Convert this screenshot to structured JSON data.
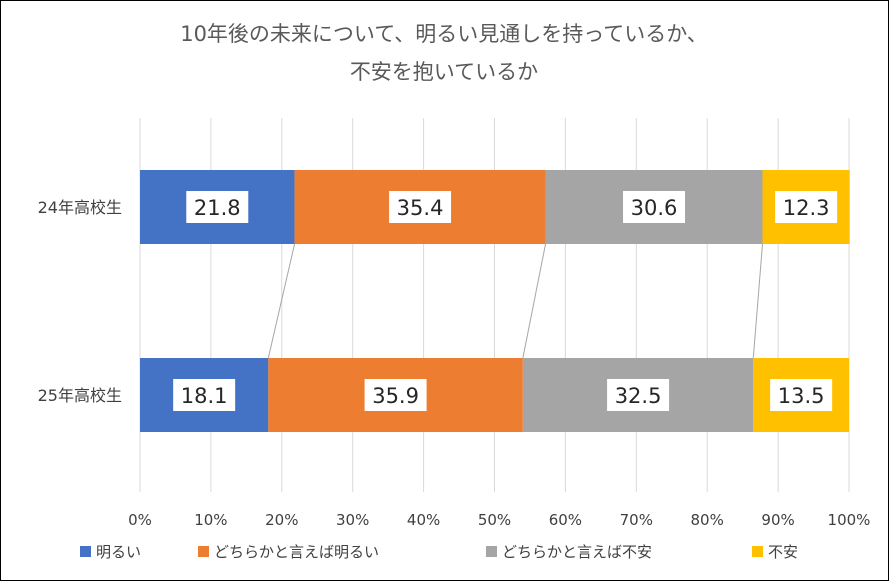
{
  "chart_data": {
    "type": "bar",
    "orientation": "horizontal",
    "stacked": "percent",
    "title_lines": [
      "10年後の未来について、明るい見通しを持っているか、",
      "不安を抱いているか"
    ],
    "categories": [
      "24年高校生",
      "25年高校生"
    ],
    "series": [
      {
        "name": "明るい",
        "color": "#4472C4",
        "values": [
          21.8,
          18.1
        ]
      },
      {
        "name": "どちらかと言えば明るい",
        "color": "#ED7D31",
        "values": [
          35.4,
          35.9
        ]
      },
      {
        "name": "どちらかと言えば不安",
        "color": "#A5A5A5",
        "values": [
          30.6,
          32.5
        ]
      },
      {
        "name": "不安",
        "color": "#FFC000",
        "values": [
          12.3,
          13.5
        ]
      }
    ],
    "x_ticks": [
      "0%",
      "10%",
      "20%",
      "30%",
      "40%",
      "50%",
      "60%",
      "70%",
      "80%",
      "90%",
      "100%"
    ],
    "xlim": [
      0,
      100
    ],
    "grid": true,
    "series_lines": true,
    "legend_position": "bottom",
    "data_labels": true
  }
}
